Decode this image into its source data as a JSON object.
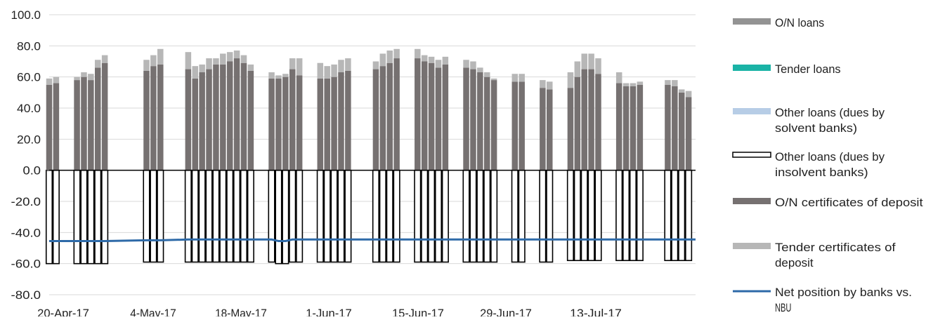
{
  "chart_data": {
    "type": "bar",
    "stacked": true,
    "title": "",
    "xlabel": "",
    "ylabel": "",
    "ylim": [
      -80,
      100
    ],
    "yticks": [
      "100.0",
      "80.0",
      "60.0",
      "40.0",
      "20.0",
      "0.0",
      "-20.0",
      "-40.0",
      "-60.0",
      "-80.0"
    ],
    "xticks": [
      "20-Apr-17",
      "4-May-17",
      "18-May-17",
      "1-Jun-17",
      "15-Jun-17",
      "29-Jun-17",
      "13-Jul-17"
    ],
    "grid": "horizontal",
    "legend_position": "right",
    "x": [
      "2017-04-20",
      "2017-04-21",
      "2017-04-24",
      "2017-04-25",
      "2017-04-26",
      "2017-04-27",
      "2017-04-28",
      "2017-05-04",
      "2017-05-05",
      "2017-05-06",
      "2017-05-10",
      "2017-05-11",
      "2017-05-12",
      "2017-05-13",
      "2017-05-14",
      "2017-05-15",
      "2017-05-16",
      "2017-05-17",
      "2017-05-18",
      "2017-05-19",
      "2017-05-22",
      "2017-05-23",
      "2017-05-24",
      "2017-05-25",
      "2017-05-26",
      "2017-05-29",
      "2017-05-30",
      "2017-05-31",
      "2017-06-01",
      "2017-06-02",
      "2017-06-06",
      "2017-06-07",
      "2017-06-08",
      "2017-06-09",
      "2017-06-12",
      "2017-06-13",
      "2017-06-14",
      "2017-06-15",
      "2017-06-16",
      "2017-06-19",
      "2017-06-20",
      "2017-06-21",
      "2017-06-22",
      "2017-06-23",
      "2017-06-26",
      "2017-06-27",
      "2017-06-30",
      "2017-07-01",
      "2017-07-04",
      "2017-07-05",
      "2017-07-06",
      "2017-07-07",
      "2017-07-08",
      "2017-07-11",
      "2017-07-12",
      "2017-07-13",
      "2017-07-14",
      "2017-07-18",
      "2017-07-19",
      "2017-07-20",
      "2017-07-21"
    ],
    "series": [
      {
        "name": "O/N loans",
        "color": "#939393",
        "values": [
          0,
          0,
          0,
          0,
          0,
          0,
          0,
          0,
          0,
          0,
          0,
          0,
          0,
          0,
          0,
          0,
          0,
          0,
          0,
          0,
          0,
          0,
          0,
          0,
          0,
          0,
          0,
          0,
          0,
          0,
          0,
          0,
          0,
          0,
          0,
          0,
          0,
          0,
          0,
          0,
          0,
          0,
          0,
          0,
          0,
          0,
          0,
          0,
          0,
          0,
          0,
          0,
          0,
          0,
          0,
          0,
          0,
          0,
          0,
          0,
          0
        ]
      },
      {
        "name": "Tender loans",
        "color": "#1ab3a6",
        "values": [
          0,
          0,
          0,
          0,
          0,
          0,
          0,
          0,
          0,
          0,
          0,
          0,
          0,
          0,
          0,
          0,
          0,
          0,
          0,
          0,
          0,
          0,
          0,
          0,
          0,
          0,
          0,
          0,
          0,
          0,
          0,
          0,
          0,
          0,
          0,
          0,
          0,
          0,
          0,
          0,
          0,
          0,
          0,
          0,
          0,
          0,
          0,
          0,
          0,
          0,
          0,
          0,
          0,
          0,
          0,
          0,
          0,
          0,
          0,
          0,
          0
        ]
      },
      {
        "name": "Other loans (dues by solvent  banks)",
        "color": "#b7cde6",
        "values": [
          0,
          0,
          0,
          0,
          0,
          0,
          0,
          0,
          0,
          0,
          0,
          0,
          0,
          0,
          0,
          0,
          0,
          0,
          0,
          0,
          0,
          0,
          0,
          0,
          0,
          0,
          0,
          0,
          0,
          0,
          0,
          0,
          0,
          0,
          0,
          0,
          0,
          0,
          0,
          0,
          0,
          0,
          0,
          0,
          0,
          0,
          0,
          0,
          0,
          0,
          0,
          0,
          0,
          0,
          0,
          0,
          0,
          0,
          0,
          0,
          0
        ]
      },
      {
        "name": "Other loans (dues by insolvent  banks)",
        "color": "#ffffff",
        "values": [
          -60,
          -60,
          -60,
          -60,
          -60,
          -60,
          -60,
          -59,
          -59,
          -59,
          -59,
          -59,
          -59,
          -59,
          -59,
          -59,
          -59,
          -59,
          -59,
          -59,
          -59,
          -60,
          -60,
          -59,
          -59,
          -59,
          -59,
          -59,
          -59,
          -59,
          -59,
          -59,
          -59,
          -59,
          -59,
          -59,
          -59,
          -59,
          -59,
          -59,
          -59,
          -59,
          -59,
          -59,
          -59,
          -59,
          -59,
          -59,
          -58,
          -58,
          -58,
          -58,
          -58,
          -58,
          -58,
          -58,
          -58,
          -58,
          -58,
          -58,
          -58
        ]
      },
      {
        "name": "O/N certificates of deposit",
        "color": "#767171",
        "values": [
          55,
          56,
          58,
          60,
          58,
          66,
          69,
          64,
          67,
          68,
          65,
          59,
          63,
          65,
          68,
          68,
          70,
          72,
          69,
          64,
          59,
          59,
          60,
          65,
          61,
          59,
          59,
          60,
          63,
          64,
          65,
          67,
          69,
          72,
          72,
          70,
          69,
          66,
          68,
          66,
          65,
          63,
          60,
          58,
          57,
          57,
          53,
          52,
          53,
          60,
          65,
          65,
          62,
          56,
          54,
          54,
          55,
          55,
          54,
          50,
          47
        ]
      },
      {
        "name": "Tender certificates of deposit",
        "color": "#b7b7b7",
        "values": [
          4,
          4,
          2,
          3,
          4,
          5,
          5,
          7,
          7,
          10,
          11,
          8,
          5,
          7,
          4,
          7,
          6,
          5,
          5,
          4,
          4,
          2,
          2,
          7,
          11,
          10,
          8,
          8,
          8,
          8,
          5,
          8,
          8,
          6,
          6,
          4,
          4,
          5,
          5,
          5,
          5,
          3,
          3,
          1,
          5,
          5,
          5,
          5,
          10,
          10,
          10,
          10,
          10,
          7,
          2,
          2,
          2,
          3,
          4,
          2,
          4
        ]
      }
    ],
    "line_series": {
      "name": "Net position by banks vs. NBU",
      "color": "#2e6aa8",
      "values": [
        -45.5,
        -45.5,
        -45.5,
        -45.5,
        -45.5,
        -45.5,
        -45.5,
        -45,
        -45,
        -45,
        -44.5,
        -44.5,
        -44.5,
        -44.5,
        -44.5,
        -44.5,
        -44.5,
        -44.5,
        -44.5,
        -44.5,
        -44.5,
        -45.5,
        -45.5,
        -44.5,
        -44.5,
        -44.5,
        -44.5,
        -44.5,
        -44.5,
        -44.5,
        -44.5,
        -44.5,
        -44.5,
        -44.5,
        -44.5,
        -44.5,
        -44.5,
        -44.5,
        -44.5,
        -44.5,
        -44.5,
        -44.5,
        -44.5,
        -44.5,
        -44.5,
        -44.5,
        -44.5,
        -44.5,
        -44.5,
        -44.5,
        -44.5,
        -44.5,
        -44.5,
        -44.5,
        -44.5,
        -44.5,
        -44.5,
        -44.5,
        -44.5,
        -44.5,
        -44.5
      ]
    },
    "legend": [
      {
        "label": "O/N loans",
        "marker": "box",
        "color": "#939393"
      },
      {
        "label": "Tender loans",
        "marker": "box",
        "color": "#1ab3a6"
      },
      {
        "label": "Other loans (dues by solvent  banks)",
        "marker": "box",
        "color": "#b7cde6"
      },
      {
        "label": "Other loans (dues by insolvent  banks)",
        "marker": "outline",
        "color": "#000000"
      },
      {
        "label": "O/N certificates of deposit",
        "marker": "box",
        "color": "#767171"
      },
      {
        "label": "Tender certificates of deposit",
        "marker": "box",
        "color": "#b7b7b7"
      },
      {
        "label": "Net position by banks vs. NBU",
        "marker": "line",
        "color": "#2e6aa8"
      }
    ]
  }
}
